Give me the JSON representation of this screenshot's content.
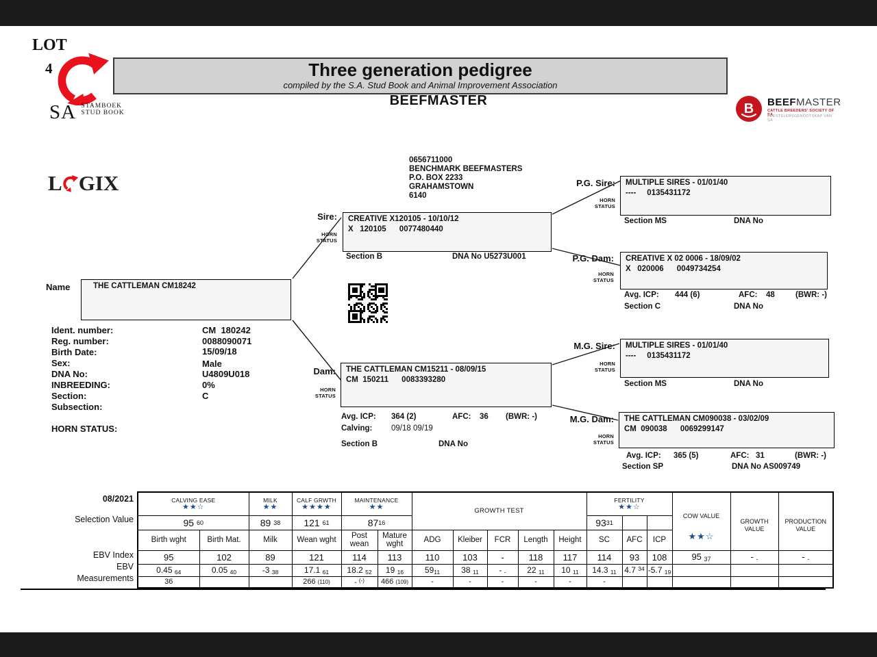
{
  "page": {
    "lot_label": "LOT",
    "lot_number": "4",
    "title": "Three generation pedigree",
    "subtitle": "compiled by the S.A. Stud Book and Animal Improvement Association",
    "breed": "BEEFMASTER",
    "sa_logo": {
      "sa": "SA",
      "l1": "STAMBOEK",
      "l2": "STUD BOOK"
    },
    "logix": {
      "pre": "L",
      "post": "GIX"
    },
    "beefmaster_logo": {
      "letter": "B",
      "name_bold": "BEEF",
      "name_light": "MASTER",
      "sub1": "CATTLE BREEDERS' SOCIETY OF SA",
      "sub2": "BEESTELERSGENOOTSKAP VAN SA",
      "red": "#c4161c"
    }
  },
  "breeder": {
    "l1": "0656711000",
    "l2": "BENCHMARK BEEFMASTERS",
    "l3": "P.O. BOX 2233",
    "l4": "GRAHAMSTOWN",
    "l5": "6140"
  },
  "animal": {
    "name_label": "Name",
    "name": "THE CATTLEMAN CM18242",
    "fields": [
      {
        "label": "Ident. number:",
        "value": "CM  180242"
      },
      {
        "label": "Reg. number:",
        "value": "0088090071"
      },
      {
        "label": "Birth Date:",
        "value": "15/09/18"
      },
      {
        "label": "Sex:",
        "value": "Male"
      },
      {
        "label": "DNA No:",
        "value": "U4809U018"
      },
      {
        "label": "INBREEDING:",
        "value": "0%"
      },
      {
        "label": "Section:",
        "value": "C"
      },
      {
        "label": "Subsection:",
        "value": ""
      }
    ],
    "horn_status_label": "HORN STATUS:"
  },
  "pedigree": {
    "horn_status": "HORN\nSTATUS",
    "sire": {
      "label": "Sire:",
      "line1": "CREATIVE X120105 - 10/10/12",
      "line2": "X   120105      0077480440",
      "section": "Section B",
      "dna": "DNA No U5273U001"
    },
    "pg_sire": {
      "label": "P.G. Sire:",
      "line1": "MULTIPLE SIRES - 01/01/40",
      "line2": "----     0135431172",
      "section": "Section MS",
      "dna": "DNA No"
    },
    "pg_dam": {
      "label": "P.G. Dam:",
      "line1": "CREATIVE X 02 0006 - 18/09/02",
      "line2": "X   020006      0049734254",
      "avg_icp_label": "Avg. ICP:",
      "avg_icp": "444 (6)",
      "afc_label": "AFC:",
      "afc": "48",
      "bwr": "(BWR: -)",
      "section": "Section C",
      "dna": "DNA No"
    },
    "dam": {
      "label": "Dam:",
      "line1": "THE CATTLEMAN CM15211 - 08/09/15",
      "line2": "CM  150211      0083393280",
      "avg_icp_label": "Avg. ICP:",
      "avg_icp": "364 (2)",
      "afc_label": "AFC:",
      "afc": "36",
      "bwr": "(BWR: -)",
      "calving_label": "Calving:",
      "calving": "09/18 09/19",
      "section": "Section B",
      "dna": "DNA No"
    },
    "mg_sire": {
      "label": "M.G. Sire:",
      "line1": "MULTIPLE SIRES - 01/01/40",
      "line2": "----     0135431172",
      "section": "Section MS",
      "dna": "DNA No"
    },
    "mg_dam": {
      "label": "M.G. Dam:",
      "line1": "THE CATTLEMAN CM090038 - 03/02/09",
      "line2": "CM  090038      0069299147",
      "avg_icp_label": "Avg. ICP:",
      "avg_icp": "365 (5)",
      "afc_label": "AFC:",
      "afc": "31",
      "bwr": "(BWR: -)",
      "section": "Section SP",
      "dna": "DNA No AS009749"
    }
  },
  "table": {
    "date": "08/2021",
    "row_labels": {
      "selection": "Selection Value",
      "ebv_index": "EBV Index",
      "ebv": "EBV",
      "measurements": "Measurements"
    },
    "star_color": "#1d4e89",
    "groups": {
      "calving_ease": {
        "label": "CALVING EASE",
        "stars": "★★☆"
      },
      "milk": {
        "label": "MILK",
        "stars": "★★"
      },
      "calf_grwth": {
        "label": "CALF GRWTH",
        "stars": "★★★★"
      },
      "maintenance": {
        "label": "MAINTENANCE",
        "stars": "★★"
      },
      "growth_test": {
        "label": "GROWTH TEST"
      },
      "fertility": {
        "label": "FERTILITY",
        "stars": "★★☆"
      },
      "cow_value": {
        "label": "COW VALUE",
        "stars": "★★☆"
      },
      "growth_value": {
        "label": "GROWTH VALUE"
      },
      "production_value": {
        "label": "PRODUCTION VALUE"
      }
    },
    "selection_values": {
      "calving_ease": {
        "v": "95",
        "a": "60"
      },
      "milk": {
        "v": "89",
        "a": "38"
      },
      "calf_grwth": {
        "v": "121",
        "a": "61"
      },
      "maintenance": {
        "v": "87",
        "a": "16"
      },
      "fertility": {
        "v": "93",
        "a": "31"
      }
    },
    "columns": [
      "Birth wght",
      "Birth Mat.",
      "Milk",
      "Wean wght",
      "Post wean",
      "Mature wght",
      "ADG",
      "Kleiber",
      "FCR",
      "Length",
      "Height",
      "SC",
      "AFC",
      "ICP"
    ],
    "ebv_index": [
      "95",
      "102",
      "89",
      "121",
      "114",
      "113",
      "110",
      "103",
      "-",
      "118",
      "117",
      "114",
      "93",
      "108"
    ],
    "ebv_index_cow": {
      "v": "95",
      "a": "37"
    },
    "ebv_index_growth": {
      "v": "-",
      "a": "-"
    },
    "ebv_index_production": {
      "v": "-",
      "a": "-"
    },
    "ebv": [
      {
        "v": "0.45",
        "a": "64"
      },
      {
        "v": "0.05",
        "a": "40"
      },
      {
        "v": "-3",
        "a": "38"
      },
      {
        "v": "17.1",
        "a": "61"
      },
      {
        "v": "18.2",
        "a": "52"
      },
      {
        "v": "19",
        "a": "16"
      },
      {
        "v": "59",
        "a": "11"
      },
      {
        "v": "38",
        "a": "11"
      },
      {
        "v": "-",
        "a": "-"
      },
      {
        "v": "22",
        "a": "11"
      },
      {
        "v": "10",
        "a": "11"
      },
      {
        "v": "14.3",
        "a": "11"
      },
      {
        "v": "4.7",
        "a": "34"
      },
      {
        "v": "-5.7",
        "a": "19"
      }
    ],
    "measurements": [
      {
        "v": "36",
        "a": ""
      },
      {
        "v": "",
        "a": ""
      },
      {
        "v": "",
        "a": ""
      },
      {
        "v": "266",
        "a": "(110)"
      },
      {
        "v": "-",
        "a": "(-)"
      },
      {
        "v": "466",
        "a": "(109)"
      },
      {
        "v": "-",
        "a": ""
      },
      {
        "v": "-",
        "a": ""
      },
      {
        "v": "-",
        "a": ""
      },
      {
        "v": "-",
        "a": ""
      },
      {
        "v": "-",
        "a": ""
      },
      {
        "v": "-",
        "a": ""
      },
      {
        "v": "",
        "a": ""
      },
      {
        "v": "",
        "a": ""
      }
    ]
  }
}
